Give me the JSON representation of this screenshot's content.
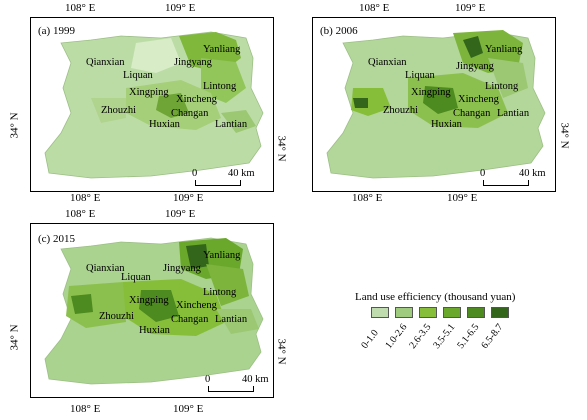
{
  "colors": {
    "class1": "#bfdcae",
    "class2": "#9ecb7e",
    "class3": "#86be3a",
    "class4": "#6aa82c",
    "class5": "#4d8a1f",
    "class6": "#33661a",
    "bg_lowveg": "#a9d38f"
  },
  "panels": [
    {
      "label": "(a) 1999",
      "places": [
        "Yanliang",
        "Qianxian",
        "Jingyang",
        "Liquan",
        "Lintong",
        "Xingping",
        "Xincheng",
        "Zhouzhi",
        "Changan",
        "Huxian",
        "Lantian"
      ],
      "lon_ticks_top": [
        "108° E",
        "109° E"
      ],
      "lon_ticks_bottom": [
        "108° E",
        "109° E"
      ],
      "lat_left": "34° N",
      "lat_right": "34° N",
      "scale": {
        "zero": "0",
        "label": "40 km"
      }
    },
    {
      "label": "(b) 2006",
      "places": [
        "Yanliang",
        "Qianxian",
        "Jingyang",
        "Liquan",
        "Lintong",
        "Xingping",
        "Xincheng",
        "Zhouzhi",
        "Changan",
        "Huxian",
        "Lantian"
      ],
      "lon_ticks_top": [
        "108° E",
        "109° E"
      ],
      "lon_ticks_bottom": [
        "108° E",
        "109° E"
      ],
      "lat_right": "34° N",
      "scale": {
        "zero": "0",
        "label": "40 km"
      }
    },
    {
      "label": "(c) 2015",
      "places": [
        "Yanliang",
        "Qianxian",
        "Jingyang",
        "Liquan",
        "Lintong",
        "Xingping",
        "Xincheng",
        "Zhouzhi",
        "Changan",
        "Huxian",
        "Lantian"
      ],
      "lon_ticks_top": [
        "108° E",
        "109° E"
      ],
      "lon_ticks_bottom": [
        "108° E",
        "109° E"
      ],
      "lat_left": "34° N",
      "lat_right": "34° N",
      "scale": {
        "zero": "0",
        "label": "40 km"
      }
    }
  ],
  "legend": {
    "title": "Land use efficiency (thousand yuan)",
    "classes": [
      "0-1.0",
      "1.0-2.6",
      "2.6-3.5",
      "3.5-5.1",
      "5.1-6.5",
      "6.5-8.7"
    ]
  }
}
